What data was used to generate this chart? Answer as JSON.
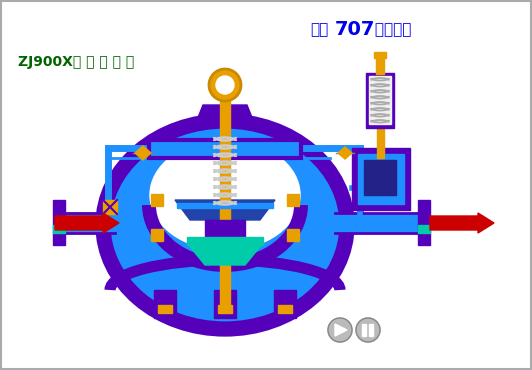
{
  "bg_color": "#ffffff",
  "title1": "化工",
  "title2": "707",
  "title3": " 剪辑制作",
  "valve_label": "ZJ900X紧 急 关 闭 阀",
  "title1_color": "#0000ee",
  "title2_color": "#0000ee",
  "title3_color": "#0000ee",
  "label_color": "#006400",
  "body_blue": "#1e90ff",
  "body_purple": "#5500bb",
  "body_gold": "#e8a000",
  "body_cyan": "#00ccaa",
  "arrow_color": "#cc0000",
  "ring_gold": "#e8a000",
  "spring_color": "#dddddd",
  "button_color": "#999999",
  "white": "#ffffff"
}
